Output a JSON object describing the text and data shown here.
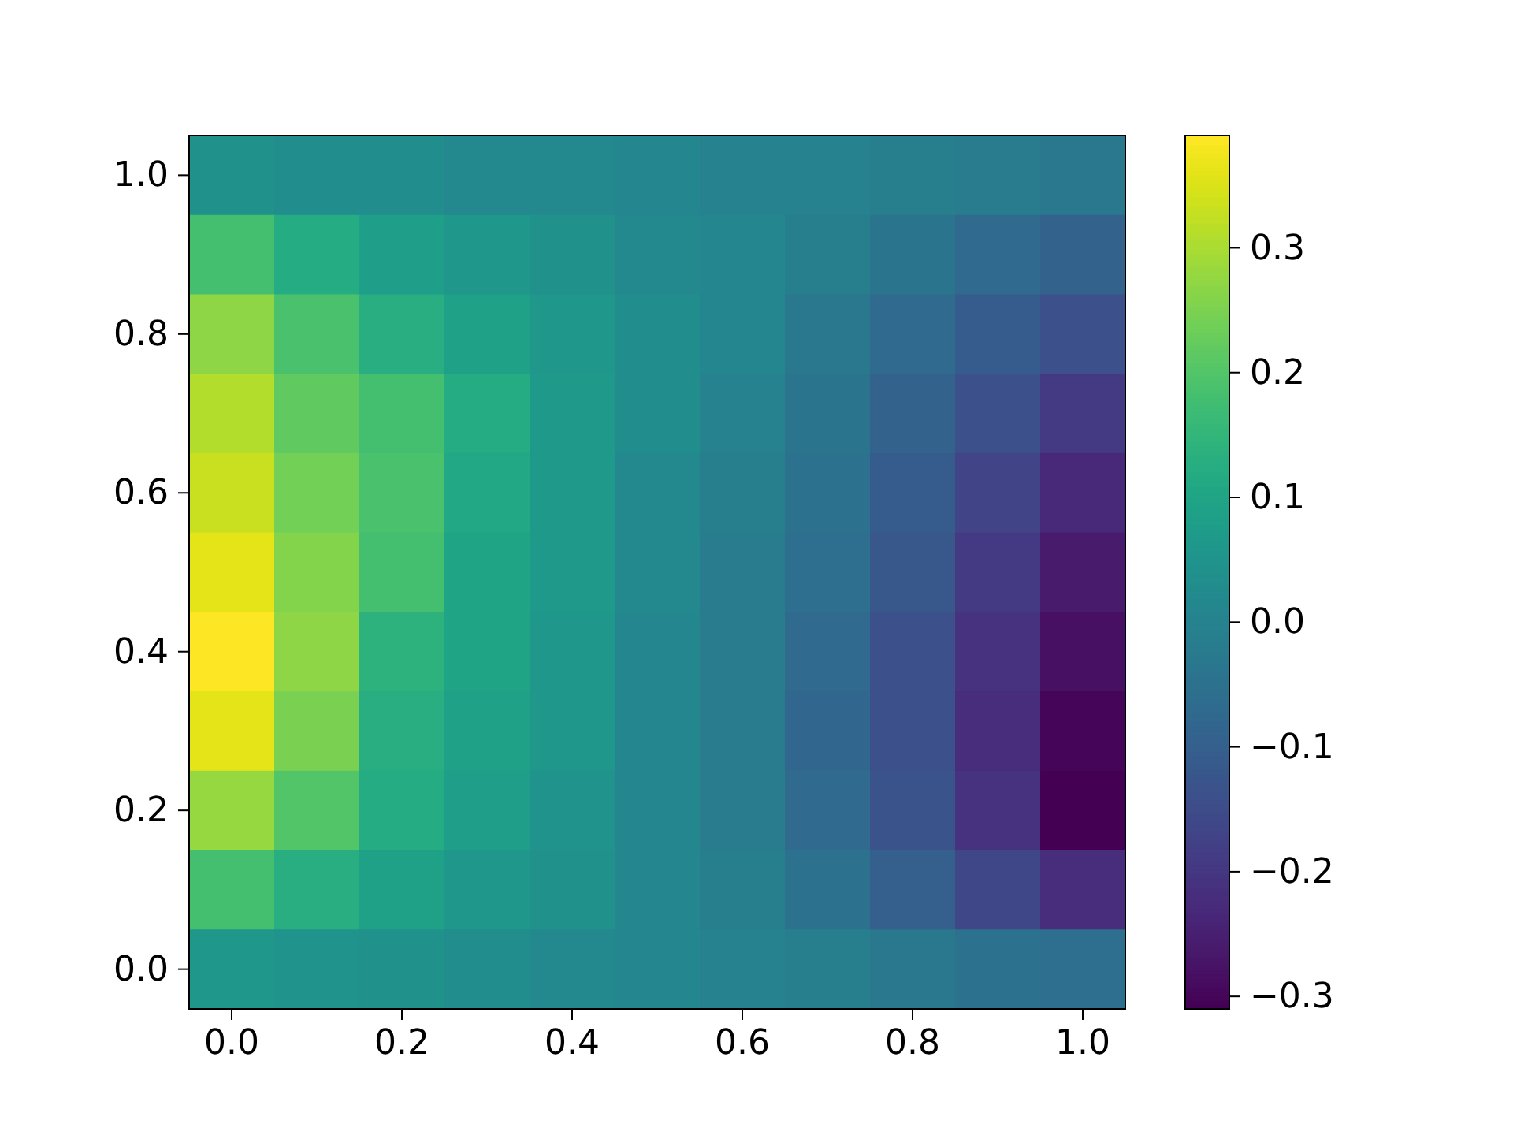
{
  "chart_data": {
    "type": "heatmap",
    "categories": [
      "0.0",
      null,
      "0.2",
      null,
      "0.4",
      null,
      "0.6",
      null,
      "0.8",
      null,
      "1.0"
    ],
    "y_categories": [
      "1.0",
      null,
      "0.8",
      null,
      "0.6",
      null,
      "0.4",
      null,
      "0.2",
      null,
      "0.0"
    ],
    "cells": [
      [
        0.04,
        0.03,
        0.03,
        0.02,
        0.02,
        0.01,
        0.0,
        0.0,
        -0.01,
        -0.02,
        -0.03
      ],
      [
        0.18,
        0.12,
        0.08,
        0.06,
        0.04,
        0.02,
        0.01,
        -0.01,
        -0.04,
        -0.07,
        -0.09
      ],
      [
        0.27,
        0.19,
        0.13,
        0.09,
        0.06,
        0.03,
        0.01,
        -0.03,
        -0.07,
        -0.11,
        -0.14
      ],
      [
        0.31,
        0.22,
        0.18,
        0.12,
        0.07,
        0.03,
        0.0,
        -0.04,
        -0.09,
        -0.14,
        -0.19
      ],
      [
        0.33,
        0.24,
        0.19,
        0.11,
        0.07,
        0.02,
        -0.01,
        -0.05,
        -0.11,
        -0.17,
        -0.23
      ],
      [
        0.36,
        0.26,
        0.18,
        0.1,
        0.07,
        0.02,
        -0.02,
        -0.06,
        -0.12,
        -0.19,
        -0.26
      ],
      [
        0.39,
        0.27,
        0.14,
        0.1,
        0.06,
        0.01,
        -0.02,
        -0.07,
        -0.14,
        -0.21,
        -0.28
      ],
      [
        0.36,
        0.25,
        0.13,
        0.09,
        0.06,
        0.01,
        -0.02,
        -0.08,
        -0.14,
        -0.22,
        -0.3
      ],
      [
        0.28,
        0.2,
        0.12,
        0.08,
        0.05,
        0.01,
        -0.02,
        -0.07,
        -0.13,
        -0.21,
        -0.31
      ],
      [
        0.18,
        0.13,
        0.09,
        0.06,
        0.04,
        0.01,
        -0.01,
        -0.05,
        -0.1,
        -0.16,
        -0.22
      ],
      [
        0.06,
        0.05,
        0.04,
        0.03,
        0.02,
        0.01,
        0.0,
        -0.01,
        -0.03,
        -0.05,
        -0.06
      ]
    ],
    "clim": [
      -0.31,
      0.39
    ],
    "cticks": [
      {
        "value": -0.3,
        "label": "−0.3"
      },
      {
        "value": -0.2,
        "label": "−0.2"
      },
      {
        "value": -0.1,
        "label": "−0.1"
      },
      {
        "value": 0,
        "label": "0.0"
      },
      {
        "value": 0.1,
        "label": "0.1"
      },
      {
        "value": 0.2,
        "label": "0.2"
      },
      {
        "value": 0.3,
        "label": "0.3"
      }
    ]
  }
}
